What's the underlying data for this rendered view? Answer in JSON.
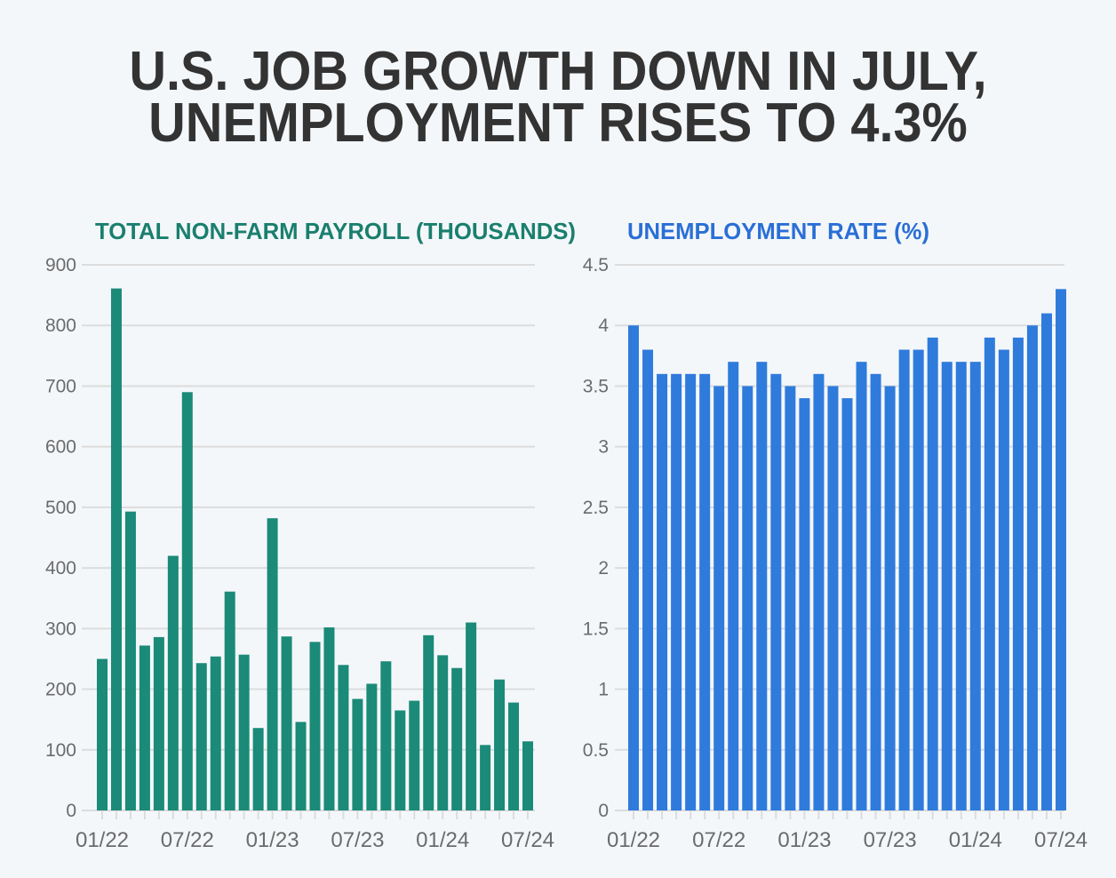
{
  "title": {
    "line1": "U.S. JOB GROWTH DOWN IN JULY,",
    "line2": "UNEMPLOYMENT RISES TO 4.3%"
  },
  "chart_data": [
    {
      "type": "bar",
      "title": "TOTAL NON-FARM PAYROLL (THOUSANDS)",
      "color": "#1b8a78",
      "title_color": "#1a7f6e",
      "ylim": [
        0,
        900
      ],
      "yticks": [
        "0",
        "100",
        "200",
        "300",
        "400",
        "500",
        "600",
        "700",
        "800",
        "900"
      ],
      "xtick_labels": [
        "01/22",
        "07/22",
        "01/23",
        "07/23",
        "01/24",
        "07/24"
      ],
      "grid": true,
      "categories": [
        "01/22",
        "02/22",
        "03/22",
        "04/22",
        "05/22",
        "06/22",
        "07/22",
        "08/22",
        "09/22",
        "10/22",
        "11/22",
        "12/22",
        "01/23",
        "02/23",
        "03/23",
        "04/23",
        "05/23",
        "06/23",
        "07/23",
        "08/23",
        "09/23",
        "10/23",
        "11/23",
        "12/23",
        "01/24",
        "02/24",
        "03/24",
        "04/24",
        "05/24",
        "06/24",
        "07/24"
      ],
      "values": [
        250,
        861,
        493,
        272,
        286,
        420,
        690,
        243,
        254,
        361,
        257,
        136,
        482,
        287,
        146,
        278,
        302,
        240,
        184,
        209,
        246,
        165,
        181,
        289,
        256,
        235,
        310,
        108,
        216,
        178,
        114
      ]
    },
    {
      "type": "bar",
      "title": "UNEMPLOYMENT RATE (%)",
      "color": "#2f7bdc",
      "title_color": "#2a6fd6",
      "ylim": [
        0,
        4.5
      ],
      "yticks": [
        "0",
        "0.5",
        "1",
        "1.5",
        "2",
        "2.5",
        "3",
        "3.5",
        "4",
        "4.5"
      ],
      "xtick_labels": [
        "01/22",
        "07/22",
        "01/23",
        "07/23",
        "01/24",
        "07/24"
      ],
      "grid": true,
      "categories": [
        "01/22",
        "02/22",
        "03/22",
        "04/22",
        "05/22",
        "06/22",
        "07/22",
        "08/22",
        "09/22",
        "10/22",
        "11/22",
        "12/22",
        "01/23",
        "02/23",
        "03/23",
        "04/23",
        "05/23",
        "06/23",
        "07/23",
        "08/23",
        "09/23",
        "10/23",
        "11/23",
        "12/23",
        "01/24",
        "02/24",
        "03/24",
        "04/24",
        "05/24",
        "06/24",
        "07/24"
      ],
      "values": [
        4.0,
        3.8,
        3.6,
        3.6,
        3.6,
        3.6,
        3.5,
        3.7,
        3.5,
        3.7,
        3.6,
        3.5,
        3.4,
        3.6,
        3.5,
        3.4,
        3.7,
        3.6,
        3.5,
        3.8,
        3.8,
        3.9,
        3.7,
        3.7,
        3.7,
        3.9,
        3.8,
        3.9,
        4.0,
        4.1,
        4.3
      ]
    }
  ]
}
